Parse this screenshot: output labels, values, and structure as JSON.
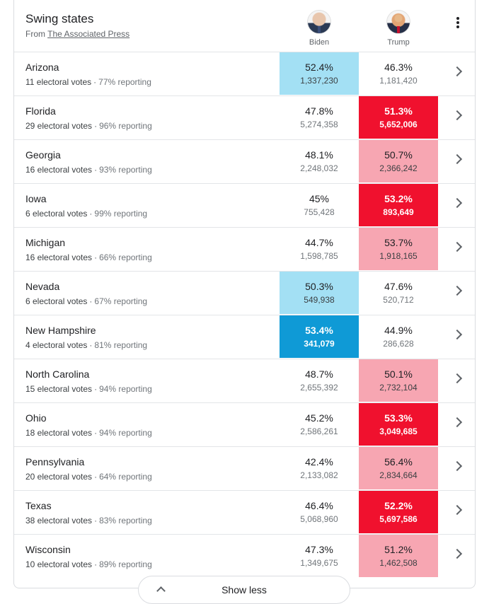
{
  "header": {
    "title": "Swing states",
    "source_prefix": "From",
    "source_link": "The Associated Press",
    "candidates": [
      {
        "name": "Biden",
        "icon": "biden-avatar"
      },
      {
        "name": "Trump",
        "icon": "trump-avatar"
      }
    ],
    "menu_icon": "more-vert-icon"
  },
  "colors": {
    "biden_strong": "#0f9ad6",
    "biden_light": "#a3e0f4",
    "trump_strong": "#f0112e",
    "trump_light": "#f7a6b2"
  },
  "states": [
    {
      "name": "Arizona",
      "electoral": "11 electoral votes",
      "reporting": "77% reporting",
      "biden": {
        "pct": "52.4%",
        "votes": "1,337,230",
        "fill": "light"
      },
      "trump": {
        "pct": "46.3%",
        "votes": "1,181,420",
        "fill": "none"
      }
    },
    {
      "name": "Florida",
      "electoral": "29 electoral votes",
      "reporting": "96% reporting",
      "biden": {
        "pct": "47.8%",
        "votes": "5,274,358",
        "fill": "none"
      },
      "trump": {
        "pct": "51.3%",
        "votes": "5,652,006",
        "fill": "strong"
      }
    },
    {
      "name": "Georgia",
      "electoral": "16 electoral votes",
      "reporting": "93% reporting",
      "biden": {
        "pct": "48.1%",
        "votes": "2,248,032",
        "fill": "none"
      },
      "trump": {
        "pct": "50.7%",
        "votes": "2,366,242",
        "fill": "light"
      }
    },
    {
      "name": "Iowa",
      "electoral": "6 electoral votes",
      "reporting": "99% reporting",
      "biden": {
        "pct": "45%",
        "votes": "755,428",
        "fill": "none"
      },
      "trump": {
        "pct": "53.2%",
        "votes": "893,649",
        "fill": "strong"
      }
    },
    {
      "name": "Michigan",
      "electoral": "16 electoral votes",
      "reporting": "66% reporting",
      "biden": {
        "pct": "44.7%",
        "votes": "1,598,785",
        "fill": "none"
      },
      "trump": {
        "pct": "53.7%",
        "votes": "1,918,165",
        "fill": "light"
      }
    },
    {
      "name": "Nevada",
      "electoral": "6 electoral votes",
      "reporting": "67% reporting",
      "biden": {
        "pct": "50.3%",
        "votes": "549,938",
        "fill": "light"
      },
      "trump": {
        "pct": "47.6%",
        "votes": "520,712",
        "fill": "none"
      }
    },
    {
      "name": "New Hampshire",
      "electoral": "4 electoral votes",
      "reporting": "81% reporting",
      "biden": {
        "pct": "53.4%",
        "votes": "341,079",
        "fill": "strong"
      },
      "trump": {
        "pct": "44.9%",
        "votes": "286,628",
        "fill": "none"
      }
    },
    {
      "name": "North Carolina",
      "electoral": "15 electoral votes",
      "reporting": "94% reporting",
      "biden": {
        "pct": "48.7%",
        "votes": "2,655,392",
        "fill": "none"
      },
      "trump": {
        "pct": "50.1%",
        "votes": "2,732,104",
        "fill": "light"
      }
    },
    {
      "name": "Ohio",
      "electoral": "18 electoral votes",
      "reporting": "94% reporting",
      "biden": {
        "pct": "45.2%",
        "votes": "2,586,261",
        "fill": "none"
      },
      "trump": {
        "pct": "53.3%",
        "votes": "3,049,685",
        "fill": "strong"
      }
    },
    {
      "name": "Pennsylvania",
      "electoral": "20 electoral votes",
      "reporting": "64% reporting",
      "biden": {
        "pct": "42.4%",
        "votes": "2,133,082",
        "fill": "none"
      },
      "trump": {
        "pct": "56.4%",
        "votes": "2,834,664",
        "fill": "light"
      }
    },
    {
      "name": "Texas",
      "electoral": "38 electoral votes",
      "reporting": "83% reporting",
      "biden": {
        "pct": "46.4%",
        "votes": "5,068,960",
        "fill": "none"
      },
      "trump": {
        "pct": "52.2%",
        "votes": "5,697,586",
        "fill": "strong"
      }
    },
    {
      "name": "Wisconsin",
      "electoral": "10 electoral votes",
      "reporting": "89% reporting",
      "biden": {
        "pct": "47.3%",
        "votes": "1,349,675",
        "fill": "none"
      },
      "trump": {
        "pct": "51.2%",
        "votes": "1,462,508",
        "fill": "light"
      }
    }
  ],
  "row_chevron_icon": "chevron-right-icon",
  "footer": {
    "show_less_label": "Show less",
    "icon": "chevron-up-icon"
  }
}
